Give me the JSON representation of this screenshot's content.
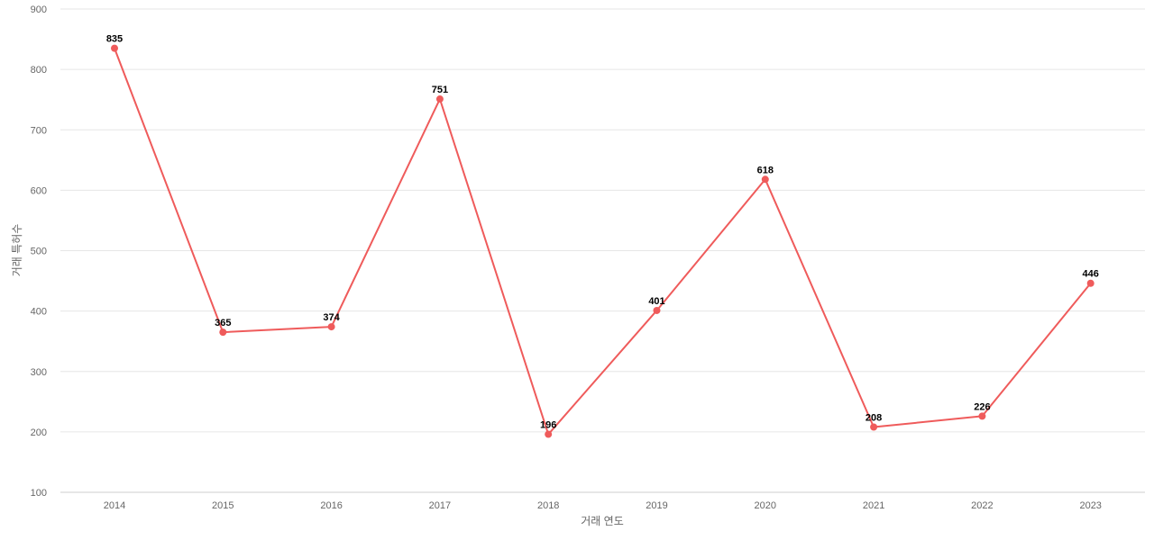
{
  "chart_data": {
    "type": "line",
    "x": [
      "2014",
      "2015",
      "2016",
      "2017",
      "2018",
      "2019",
      "2020",
      "2021",
      "2022",
      "2023"
    ],
    "series": [
      {
        "values": [
          835,
          365,
          374,
          751,
          196,
          401,
          618,
          208,
          226,
          446
        ]
      }
    ],
    "title": "",
    "xlabel": "거래 연도",
    "ylabel": "거래 특허수",
    "ylim": [
      100,
      900
    ],
    "yticks": [
      100,
      200,
      300,
      400,
      500,
      600,
      700,
      800,
      900
    ],
    "grid": true,
    "data_labels": true,
    "color": "#ef5b5b"
  }
}
